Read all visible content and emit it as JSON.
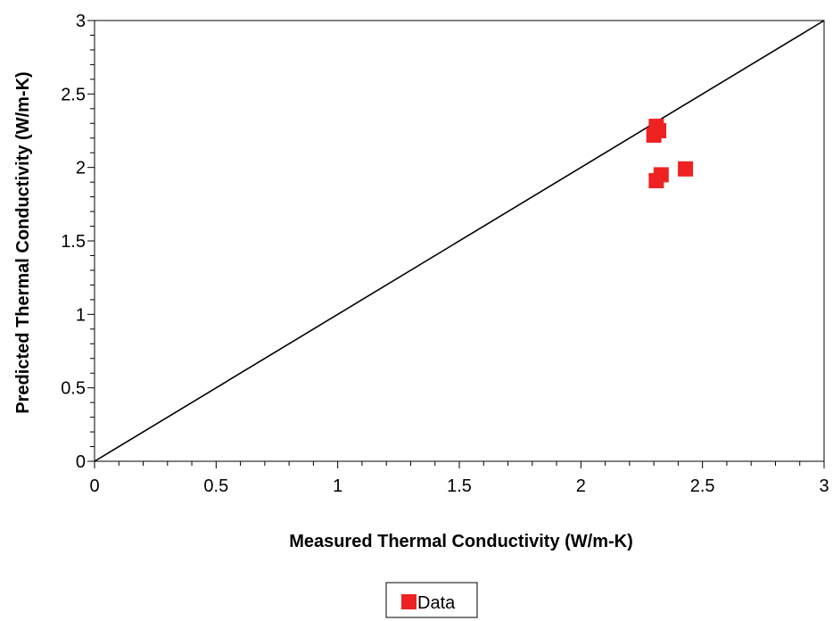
{
  "chart_data": {
    "type": "scatter",
    "xlabel": "Measured Thermal Conductivity (W/m-K)",
    "ylabel": "Predicted Thermal Conductivity (W/m-K)",
    "xlim": [
      0,
      3
    ],
    "ylim": [
      0,
      3
    ],
    "x_ticks": [
      "0",
      "0.5",
      "1",
      "1.5",
      "2",
      "2.5",
      "3"
    ],
    "y_ticks": [
      "0",
      "0.5",
      "1",
      "1.5",
      "2",
      "2.5",
      "3"
    ],
    "grid": false,
    "reference_line": {
      "x": [
        0,
        3
      ],
      "y": [
        0,
        3
      ],
      "color": "#000000"
    },
    "series": [
      {
        "name": "Data",
        "color": "#ee2222",
        "marker": "square",
        "points": [
          {
            "x": 2.31,
            "y": 2.28
          },
          {
            "x": 2.3,
            "y": 2.22
          },
          {
            "x": 2.32,
            "y": 2.25
          },
          {
            "x": 2.33,
            "y": 1.95
          },
          {
            "x": 2.31,
            "y": 1.91
          },
          {
            "x": 2.43,
            "y": 1.99
          }
        ]
      }
    ],
    "legend": {
      "position": "bottom-center",
      "entries": [
        "Data"
      ]
    }
  }
}
